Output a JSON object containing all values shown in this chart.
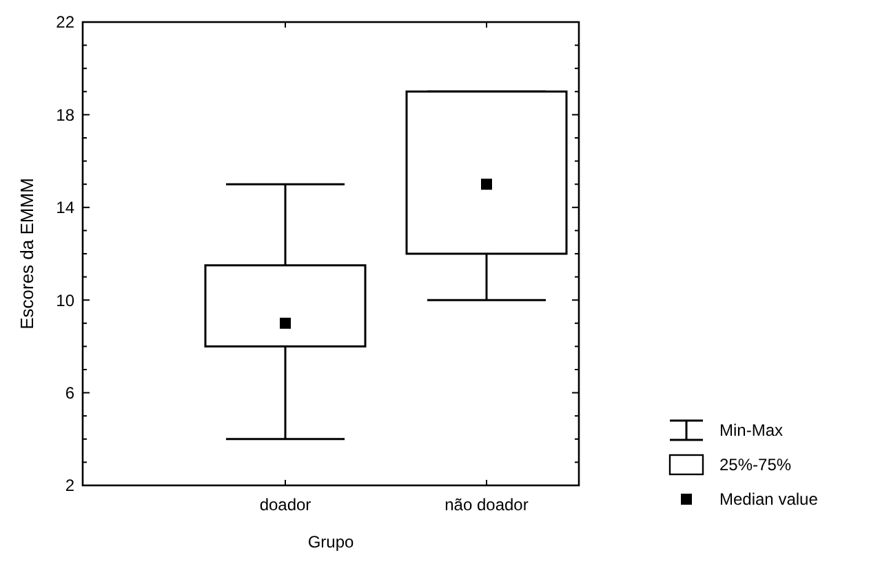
{
  "chart_data": {
    "type": "box",
    "xlabel": "Grupo",
    "ylabel": "Escores da EMMM",
    "categories": [
      "doador",
      "não doador"
    ],
    "boxes": [
      {
        "low": 4,
        "q1": 8,
        "median": 9,
        "q3": 11.5,
        "high": 15
      },
      {
        "low": 10,
        "q1": 12,
        "median": 15,
        "q3": 19,
        "high": 19
      }
    ],
    "ylim": [
      2,
      22
    ],
    "yticks": [
      2,
      {
        "value": 3,
        "label": null
      },
      {
        "value": 4,
        "label": null
      },
      {
        "value": 5,
        "label": null
      },
      6,
      {
        "value": 7,
        "label": null
      },
      {
        "value": 8,
        "label": null
      },
      {
        "value": 9,
        "label": null
      },
      10,
      {
        "value": 11,
        "label": null
      },
      {
        "value": 12,
        "label": null
      },
      {
        "value": 13,
        "label": null
      },
      14,
      {
        "value": 15,
        "label": null
      },
      {
        "value": 16,
        "label": null
      },
      {
        "value": 17,
        "label": null
      },
      18,
      {
        "value": 19,
        "label": null
      },
      {
        "value": 20,
        "label": null
      },
      {
        "value": 21,
        "label": null
      },
      22
    ],
    "grid": false,
    "annotations": [
      "Min-Max",
      "25%-75%",
      "Median value"
    ]
  }
}
